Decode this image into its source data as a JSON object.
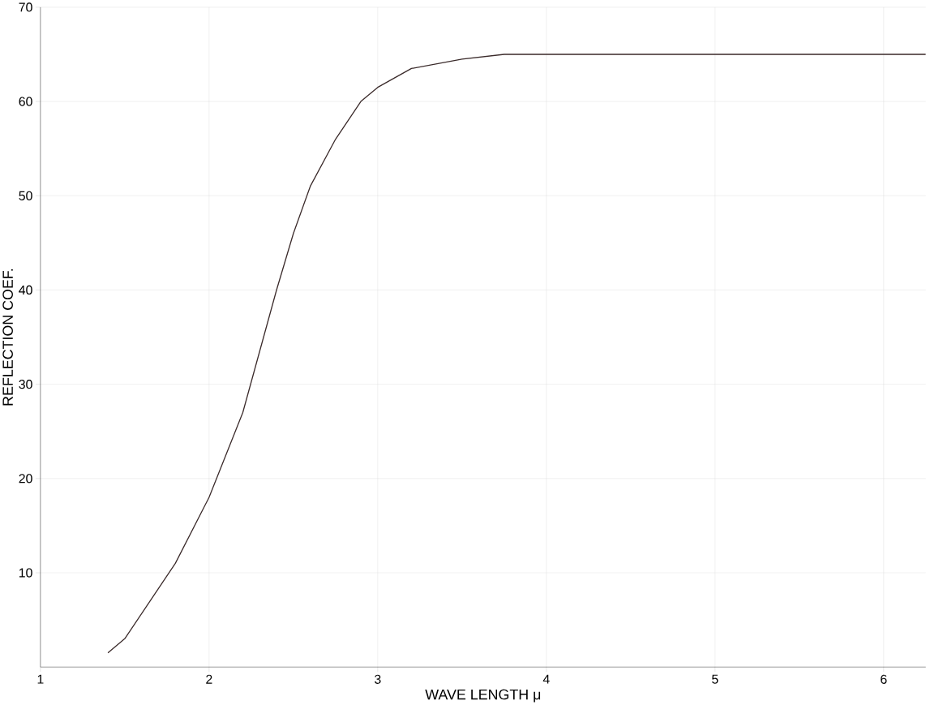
{
  "chart_data": {
    "type": "line",
    "xlabel": "WAVE LENGTH μ",
    "ylabel": "REFLECTION COEF.",
    "x": [
      1.4,
      1.5,
      1.65,
      1.8,
      2.0,
      2.2,
      2.4,
      2.5,
      2.6,
      2.75,
      2.9,
      3.0,
      3.2,
      3.5,
      3.75,
      4.0,
      6.25
    ],
    "series": [
      {
        "color": "#3a2a2a",
        "values": [
          1.5,
          3,
          7,
          11,
          18,
          27,
          40,
          46,
          51,
          56,
          60,
          61.5,
          63.5,
          64.5,
          65,
          65,
          65
        ]
      }
    ],
    "xlim": [
      1,
      6.25
    ],
    "ylim": [
      0,
      70
    ],
    "xticks": [
      1,
      2,
      3,
      4,
      5,
      6
    ],
    "yticks": [
      10,
      20,
      30,
      40,
      50,
      60,
      70
    ],
    "grid": true,
    "marker": "none",
    "line_style": "solid"
  }
}
